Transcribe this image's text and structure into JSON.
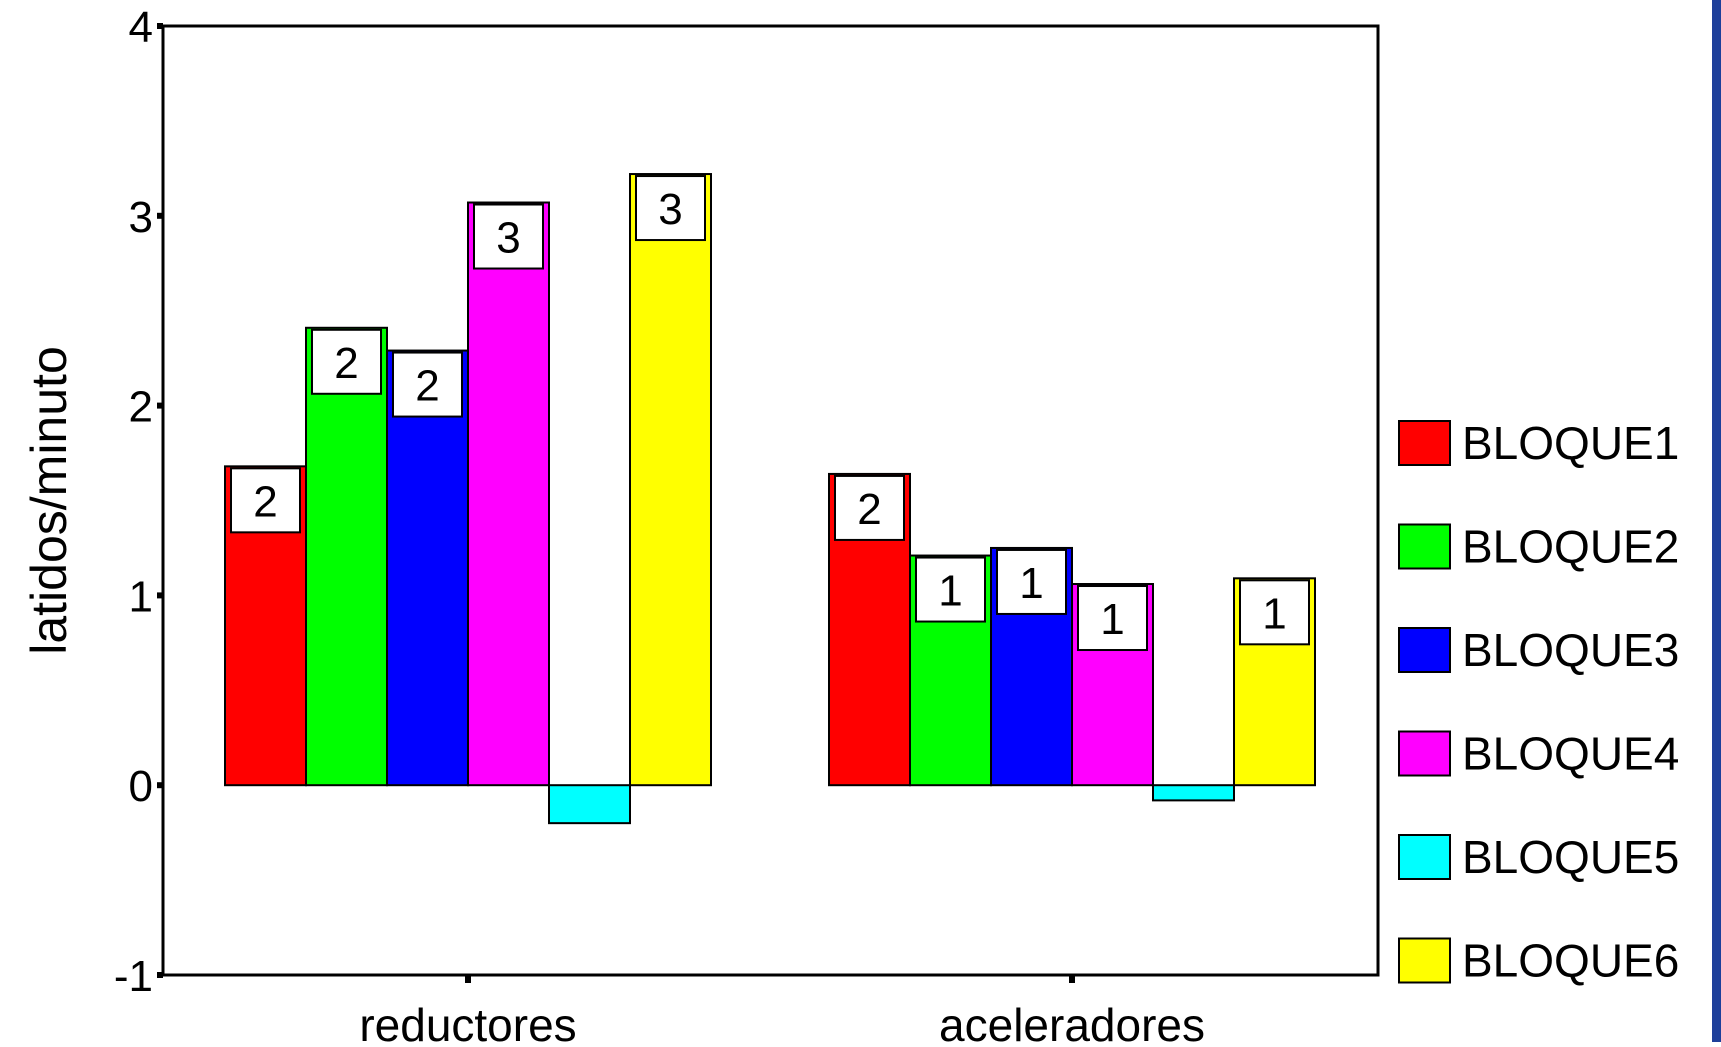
{
  "chart_data": {
    "type": "bar",
    "ylabel": "latidos/minuto",
    "xlabel": "",
    "ylim": [
      -1,
      4
    ],
    "yticks": [
      "-1",
      "0",
      "1",
      "2",
      "3",
      "4"
    ],
    "categories": [
      "reductores",
      "aceleradores"
    ],
    "series": [
      {
        "name": "BLOQUE1",
        "color": "#ff0000",
        "values": [
          1.68,
          1.64
        ],
        "labels": [
          "2",
          "2"
        ]
      },
      {
        "name": "BLOQUE2",
        "color": "#00ff00",
        "values": [
          2.41,
          1.21
        ],
        "labels": [
          "2",
          "1"
        ]
      },
      {
        "name": "BLOQUE3",
        "color": "#0000ff",
        "values": [
          2.29,
          1.25
        ],
        "labels": [
          "2",
          "1"
        ]
      },
      {
        "name": "BLOQUE4",
        "color": "#ff00ff",
        "values": [
          3.07,
          1.06
        ],
        "labels": [
          "3",
          "1"
        ]
      },
      {
        "name": "BLOQUE5",
        "color": "#00ffff",
        "values": [
          -0.2,
          -0.08
        ],
        "labels": [
          "",
          ""
        ]
      },
      {
        "name": "BLOQUE6",
        "color": "#ffff00",
        "values": [
          3.22,
          1.09
        ],
        "labels": [
          "3",
          "1"
        ]
      }
    ],
    "grid": false,
    "legend_position": "right"
  }
}
